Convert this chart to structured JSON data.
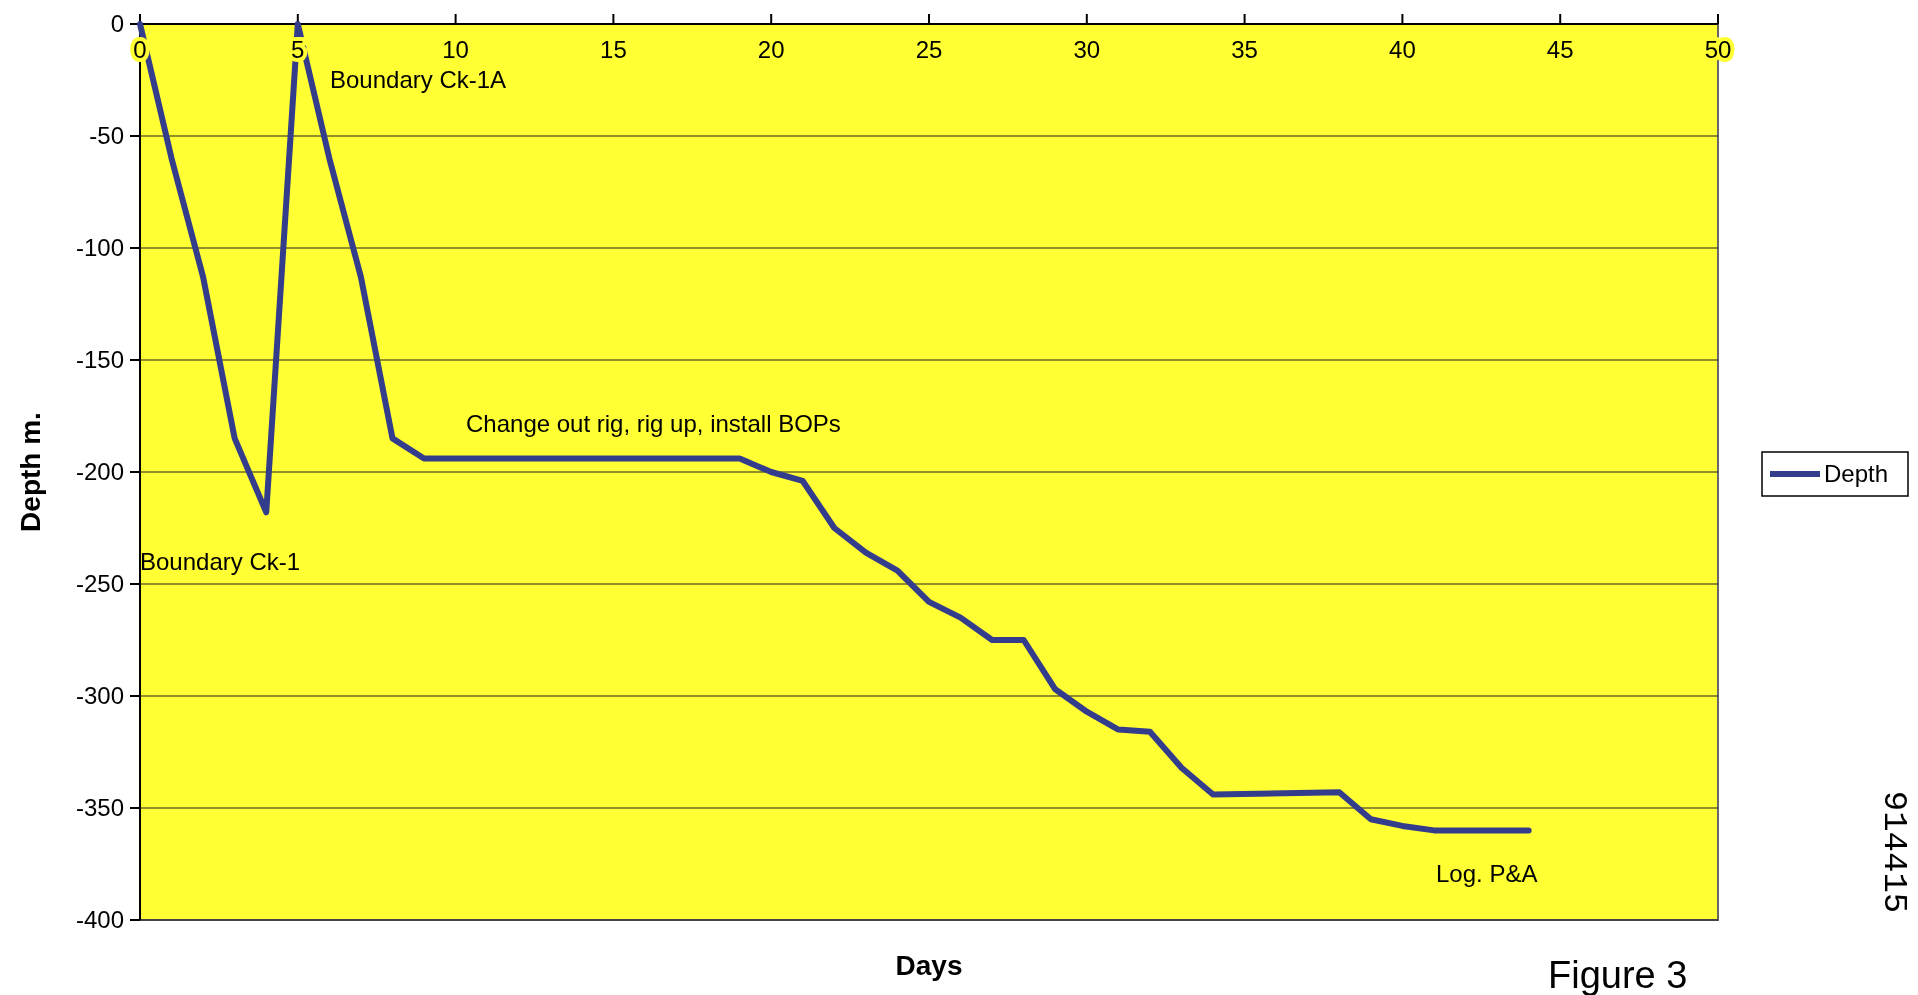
{
  "chart_data": {
    "type": "line",
    "xlabel": "Days",
    "ylabel": "Depth m.",
    "x": [
      0,
      1,
      2,
      3,
      4,
      5,
      6,
      7,
      8,
      9,
      19,
      20,
      21,
      22,
      23,
      24,
      25,
      26,
      27,
      28,
      29,
      30,
      31,
      32,
      33,
      34,
      38,
      39,
      40,
      41,
      44
    ],
    "series": [
      {
        "name": "Depth",
        "color": "#343c8c",
        "values": [
          0,
          -60,
          -113,
          -185,
          -218,
          0,
          -60,
          -113,
          -185,
          -194,
          -194,
          -200,
          -204,
          -225,
          -236,
          -244,
          -258,
          -265,
          -275,
          -275,
          -297,
          -307,
          -315,
          -316,
          -332,
          -344,
          -343,
          -355,
          -358,
          -360,
          -360
        ]
      }
    ],
    "xlim": [
      0,
      50
    ],
    "xticks": [
      0,
      5,
      10,
      15,
      20,
      25,
      30,
      35,
      40,
      45,
      50
    ],
    "ylim": [
      -400,
      0
    ],
    "yticks": [
      -400,
      -350,
      -300,
      -250,
      -200,
      -150,
      -100,
      -50,
      0
    ],
    "grid": "y",
    "legend": "right",
    "marker": "none",
    "line_style": "solid",
    "annotations": [
      "Boundary Ck-1A",
      "Boundary Ck-1",
      "Change out rig, rig up, install BOPs",
      "Log. P&A",
      "Figure 3",
      "914415"
    ]
  }
}
